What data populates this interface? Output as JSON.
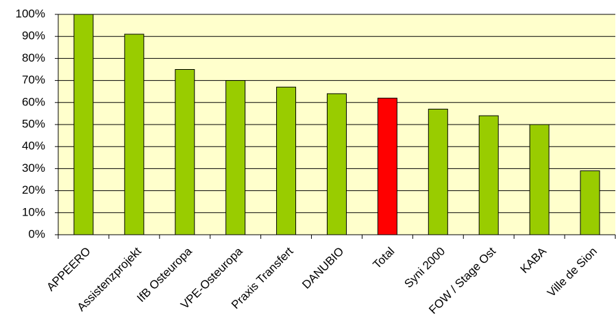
{
  "chart_data": {
    "type": "bar",
    "categories": [
      "APPEERO",
      "Assistenzprojekt",
      "IfB Osteuropa",
      "VPE-Osteuropa",
      "Praxis Transfert",
      "DANUBIO",
      "Total",
      "Syni 2000",
      "FOW / Stage Ost",
      "KABA",
      "Ville de Sion"
    ],
    "values": [
      100,
      91,
      75,
      70,
      67,
      64,
      62,
      57,
      54,
      50,
      29
    ],
    "colors": [
      "#99cc00",
      "#99cc00",
      "#99cc00",
      "#99cc00",
      "#99cc00",
      "#99cc00",
      "#ff0000",
      "#99cc00",
      "#99cc00",
      "#99cc00",
      "#99cc00"
    ],
    "ylim": [
      0,
      100
    ],
    "yticks": [
      {
        "value": 0,
        "label": "0%"
      },
      {
        "value": 10,
        "label": "10%"
      },
      {
        "value": 20,
        "label": "20%"
      },
      {
        "value": 30,
        "label": "30%"
      },
      {
        "value": 40,
        "label": "40%"
      },
      {
        "value": 50,
        "label": "50%"
      },
      {
        "value": 60,
        "label": "60%"
      },
      {
        "value": 70,
        "label": "70%"
      },
      {
        "value": 80,
        "label": "80%"
      },
      {
        "value": 90,
        "label": "90%"
      },
      {
        "value": 100,
        "label": "100%"
      }
    ],
    "grid": true
  }
}
